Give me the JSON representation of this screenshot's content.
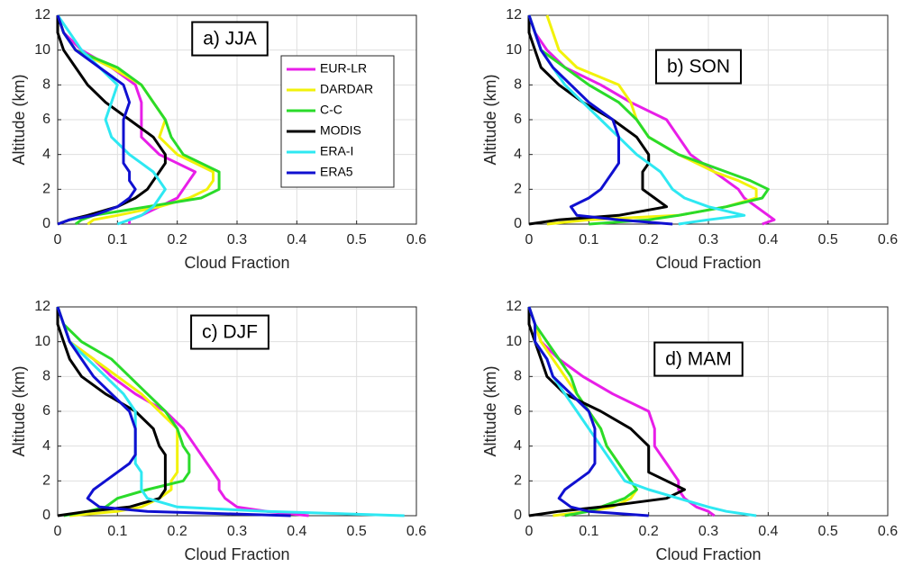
{
  "chart_data": [
    {
      "type": "line",
      "title": "a) JJA",
      "x_label": "Cloud Fraction",
      "y_label": "Altitude (km)",
      "y": [
        0,
        0.25,
        0.5,
        1,
        1.5,
        2,
        2.5,
        3,
        3.5,
        4,
        5,
        6,
        7,
        8,
        9,
        10,
        11,
        12
      ],
      "xlim": [
        0,
        0.6
      ],
      "ylim": [
        0,
        12
      ],
      "xticks": [
        0,
        0.1,
        0.2,
        0.3,
        0.4,
        0.5,
        0.6
      ],
      "yticks": [
        0,
        2,
        4,
        6,
        8,
        10,
        12
      ],
      "grid": true,
      "legend": "upper right",
      "series": [
        {
          "name": "EUR-LR",
          "color": "#e81ee8",
          "values": [
            0.12,
            0.12,
            0.14,
            0.17,
            0.2,
            0.21,
            0.22,
            0.23,
            0.2,
            0.17,
            0.14,
            0.14,
            0.14,
            0.13,
            0.09,
            0.04,
            0.01,
            0
          ]
        },
        {
          "name": "DARDAR",
          "color": "#f2f20a",
          "values": [
            0.05,
            0.06,
            0.1,
            0.17,
            0.22,
            0.25,
            0.26,
            0.26,
            0.23,
            0.2,
            0.17,
            0.18,
            0.16,
            0.14,
            0.09,
            0.03,
            0.01,
            0
          ]
        },
        {
          "name": "C-C",
          "color": "#2adb2a",
          "values": [
            0.03,
            0.04,
            0.06,
            0.15,
            0.24,
            0.27,
            0.27,
            0.27,
            0.24,
            0.21,
            0.19,
            0.18,
            0.16,
            0.14,
            0.1,
            0.03,
            0.01,
            0
          ]
        },
        {
          "name": "MODIS",
          "color": "#000000",
          "values": [
            0,
            0.02,
            0.05,
            0.1,
            0.13,
            0.15,
            0.16,
            0.17,
            0.18,
            0.18,
            0.16,
            0.12,
            0.08,
            0.05,
            0.03,
            0.01,
            0,
            0
          ]
        },
        {
          "name": "ERA-I",
          "color": "#2ee8f2",
          "values": [
            0.1,
            0.12,
            0.14,
            0.16,
            0.17,
            0.18,
            0.17,
            0.16,
            0.14,
            0.12,
            0.09,
            0.08,
            0.09,
            0.1,
            0.07,
            0.04,
            0.02,
            0
          ]
        },
        {
          "name": "ERA5",
          "color": "#1010d0",
          "values": [
            0,
            0.02,
            0.06,
            0.1,
            0.12,
            0.13,
            0.12,
            0.12,
            0.11,
            0.11,
            0.11,
            0.11,
            0.12,
            0.11,
            0.07,
            0.03,
            0.01,
            0
          ]
        }
      ]
    },
    {
      "type": "line",
      "title": "b) SON",
      "x_label": "Cloud Fraction",
      "y_label": "Altitude (km)",
      "y": [
        0,
        0.25,
        0.5,
        1,
        1.5,
        2,
        2.5,
        3,
        3.5,
        4,
        5,
        6,
        7,
        8,
        9,
        10,
        11,
        12
      ],
      "xlim": [
        0,
        0.6
      ],
      "ylim": [
        0,
        12
      ],
      "xticks": [
        0,
        0.1,
        0.2,
        0.3,
        0.4,
        0.5,
        0.6
      ],
      "yticks": [
        0,
        2,
        4,
        6,
        8,
        10,
        12
      ],
      "grid": true,
      "series": [
        {
          "color": "#e81ee8",
          "values": [
            0.39,
            0.41,
            0.4,
            0.38,
            0.36,
            0.35,
            0.33,
            0.31,
            0.29,
            0.27,
            0.25,
            0.23,
            0.17,
            0.12,
            0.06,
            0.03,
            0.01,
            0
          ]
        },
        {
          "color": "#f2f20a",
          "values": [
            0.03,
            0.1,
            0.25,
            0.33,
            0.38,
            0.38,
            0.35,
            0.31,
            0.28,
            0.25,
            0.2,
            0.18,
            0.17,
            0.15,
            0.08,
            0.05,
            0.04,
            0.03
          ]
        },
        {
          "color": "#2adb2a",
          "values": [
            0.1,
            0.2,
            0.25,
            0.33,
            0.39,
            0.4,
            0.37,
            0.33,
            0.29,
            0.25,
            0.2,
            0.18,
            0.15,
            0.1,
            0.06,
            0.02,
            0.01,
            0
          ]
        },
        {
          "color": "#000000",
          "values": [
            0,
            0.05,
            0.15,
            0.23,
            0.21,
            0.19,
            0.19,
            0.19,
            0.2,
            0.2,
            0.18,
            0.14,
            0.09,
            0.05,
            0.02,
            0.01,
            0,
            0
          ]
        },
        {
          "color": "#2ee8f2",
          "values": [
            0.25,
            0.3,
            0.36,
            0.3,
            0.26,
            0.24,
            0.23,
            0.22,
            0.2,
            0.18,
            0.15,
            0.12,
            0.09,
            0.06,
            0.04,
            0.02,
            0.01,
            0
          ]
        },
        {
          "color": "#1010d0",
          "values": [
            0.24,
            0.15,
            0.08,
            0.07,
            0.1,
            0.12,
            0.13,
            0.14,
            0.15,
            0.15,
            0.15,
            0.14,
            0.1,
            0.07,
            0.04,
            0.02,
            0.01,
            0
          ]
        }
      ]
    },
    {
      "type": "line",
      "title": "c) DJF",
      "x_label": "Cloud Fraction",
      "y_label": "Altitude (km)",
      "y": [
        0,
        0.25,
        0.5,
        1,
        1.5,
        2,
        2.5,
        3,
        3.5,
        4,
        5,
        6,
        7,
        8,
        9,
        10,
        11,
        12
      ],
      "xlim": [
        0,
        0.6
      ],
      "ylim": [
        0,
        12
      ],
      "xticks": [
        0,
        0.1,
        0.2,
        0.3,
        0.4,
        0.5,
        0.6
      ],
      "yticks": [
        0,
        2,
        4,
        6,
        8,
        10,
        12
      ],
      "grid": true,
      "series": [
        {
          "color": "#e81ee8",
          "values": [
            0.42,
            0.35,
            0.3,
            0.28,
            0.27,
            0.27,
            0.26,
            0.25,
            0.24,
            0.23,
            0.21,
            0.18,
            0.13,
            0.09,
            0.06,
            0.02,
            0.01,
            0
          ]
        },
        {
          "color": "#f2f20a",
          "values": [
            0.02,
            0.1,
            0.14,
            0.17,
            0.19,
            0.19,
            0.2,
            0.2,
            0.2,
            0.2,
            0.2,
            0.17,
            0.14,
            0.1,
            0.06,
            0.02,
            0.01,
            0
          ]
        },
        {
          "color": "#2adb2a",
          "values": [
            0.01,
            0.05,
            0.08,
            0.1,
            0.15,
            0.21,
            0.22,
            0.22,
            0.22,
            0.21,
            0.2,
            0.18,
            0.15,
            0.12,
            0.09,
            0.04,
            0.01,
            0
          ]
        },
        {
          "color": "#000000",
          "values": [
            0,
            0.05,
            0.12,
            0.17,
            0.18,
            0.18,
            0.18,
            0.18,
            0.18,
            0.17,
            0.16,
            0.13,
            0.08,
            0.04,
            0.02,
            0.01,
            0,
            0
          ]
        },
        {
          "color": "#2ee8f2",
          "values": [
            0.58,
            0.35,
            0.2,
            0.15,
            0.14,
            0.14,
            0.14,
            0.13,
            0.13,
            0.13,
            0.13,
            0.13,
            0.11,
            0.08,
            0.05,
            0.02,
            0.01,
            0
          ]
        },
        {
          "color": "#1010d0",
          "values": [
            0.39,
            0.15,
            0.07,
            0.05,
            0.06,
            0.08,
            0.1,
            0.12,
            0.13,
            0.13,
            0.13,
            0.12,
            0.09,
            0.06,
            0.04,
            0.02,
            0.01,
            0
          ]
        }
      ]
    },
    {
      "type": "line",
      "title": "d) MAM",
      "x_label": "Cloud Fraction",
      "y_label": "Altitude (km)",
      "y": [
        0,
        0.25,
        0.5,
        1,
        1.5,
        2,
        2.5,
        3,
        3.5,
        4,
        5,
        6,
        7,
        8,
        9,
        10,
        11,
        12
      ],
      "xlim": [
        0,
        0.6
      ],
      "ylim": [
        0,
        12
      ],
      "xticks": [
        0,
        0.1,
        0.2,
        0.3,
        0.4,
        0.5,
        0.6
      ],
      "yticks": [
        0,
        2,
        4,
        6,
        8,
        10,
        12
      ],
      "grid": true,
      "series": [
        {
          "color": "#e81ee8",
          "values": [
            0.31,
            0.3,
            0.28,
            0.26,
            0.25,
            0.25,
            0.24,
            0.23,
            0.22,
            0.21,
            0.21,
            0.2,
            0.14,
            0.09,
            0.05,
            0.02,
            0.01,
            0
          ]
        },
        {
          "color": "#f2f20a",
          "values": [
            0.04,
            0.1,
            0.14,
            0.17,
            0.18,
            0.17,
            0.16,
            0.15,
            0.14,
            0.13,
            0.12,
            0.1,
            0.08,
            0.06,
            0.04,
            0.02,
            0.01,
            0
          ]
        },
        {
          "color": "#2adb2a",
          "values": [
            0.06,
            0.1,
            0.12,
            0.16,
            0.18,
            0.17,
            0.16,
            0.15,
            0.14,
            0.13,
            0.12,
            0.1,
            0.08,
            0.07,
            0.05,
            0.03,
            0.01,
            0
          ]
        },
        {
          "color": "#000000",
          "values": [
            0,
            0.05,
            0.12,
            0.23,
            0.26,
            0.23,
            0.2,
            0.2,
            0.2,
            0.2,
            0.17,
            0.12,
            0.06,
            0.03,
            0.02,
            0.01,
            0,
            0
          ]
        },
        {
          "color": "#2ee8f2",
          "values": [
            0.38,
            0.33,
            0.3,
            0.25,
            0.2,
            0.16,
            0.15,
            0.14,
            0.13,
            0.12,
            0.1,
            0.08,
            0.06,
            0.04,
            0.03,
            0.01,
            0.01,
            0
          ]
        },
        {
          "color": "#1010d0",
          "values": [
            0.2,
            0.1,
            0.07,
            0.05,
            0.06,
            0.08,
            0.1,
            0.11,
            0.11,
            0.11,
            0.11,
            0.1,
            0.07,
            0.04,
            0.03,
            0.01,
            0.01,
            0
          ]
        }
      ]
    }
  ]
}
